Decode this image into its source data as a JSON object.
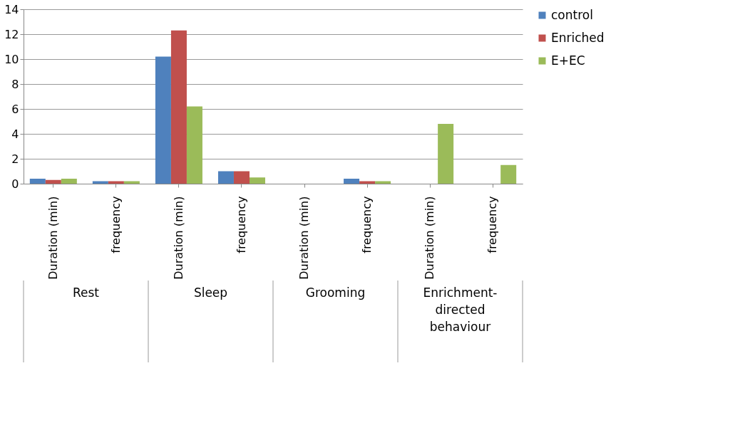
{
  "chart_data": {
    "type": "bar",
    "categories": [
      "Duration (min)",
      "frequency",
      "Duration (min)",
      "frequency",
      "Duration (min)",
      "frequency",
      "Duration (min)",
      "frequency"
    ],
    "series": [
      {
        "name": "control",
        "color": "#4f81bd",
        "values": [
          0.4,
          0.2,
          10.2,
          1.0,
          0,
          0.4,
          0,
          0
        ]
      },
      {
        "name": "Enriched",
        "color": "#c0504d",
        "values": [
          0.3,
          0.2,
          12.3,
          1.0,
          0,
          0.2,
          0,
          0
        ]
      },
      {
        "name": "E+EC",
        "color": "#9bbb59",
        "values": [
          0.4,
          0.2,
          6.2,
          0.5,
          0,
          0.2,
          4.8,
          1.5
        ]
      }
    ],
    "ylim": [
      0,
      14
    ],
    "yticks": [
      0,
      2,
      4,
      6,
      8,
      10,
      12,
      14
    ],
    "grid": "y",
    "legend": "right",
    "annotations": [
      "Rest",
      "Sleep",
      "Grooming",
      "Enrichment-directed behaviour"
    ]
  }
}
